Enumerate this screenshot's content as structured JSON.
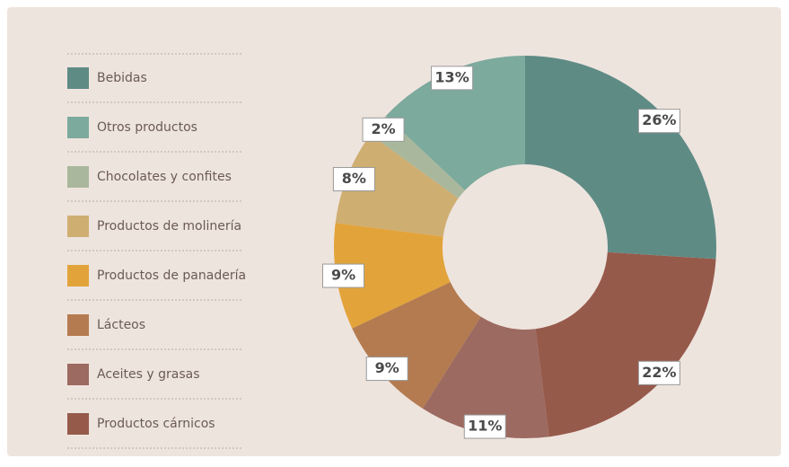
{
  "chart_data": {
    "type": "donut",
    "categories": [
      "Bebidas",
      "Otros productos",
      "Chocolates y confites",
      "Productos de molinería",
      "Productos de panadería",
      "Lácteos",
      "Aceites y grasas",
      "Productos cárnicos"
    ],
    "values": [
      26,
      13,
      2,
      8,
      9,
      9,
      11,
      22
    ],
    "value_labels": [
      "26%",
      "13%",
      "2%",
      "8%",
      "9%",
      "9%",
      "11%",
      "22%"
    ],
    "colors": [
      "#5f8b85",
      "#7caa9d",
      "#a9b89c",
      "#cfae72",
      "#e2a43a",
      "#b47b50",
      "#9c6a60",
      "#965a4b"
    ]
  }
}
